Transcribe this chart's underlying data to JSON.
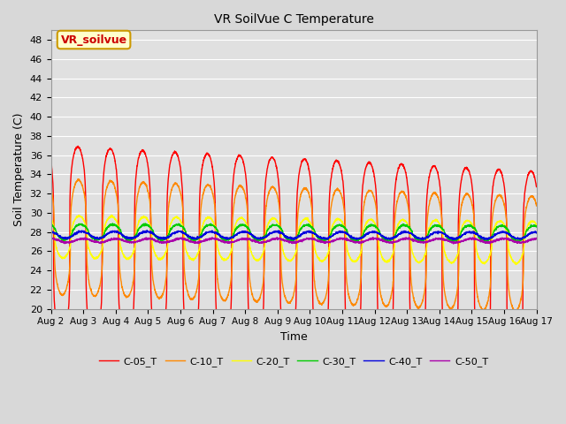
{
  "title": "VR SoilVue C Temperature",
  "xlabel": "Time",
  "ylabel": "Soil Temperature (C)",
  "ylim": [
    20,
    49
  ],
  "yticks": [
    20,
    22,
    24,
    26,
    28,
    30,
    32,
    34,
    36,
    38,
    40,
    42,
    44,
    46,
    48
  ],
  "x_tick_labels": [
    "Aug 2",
    "Aug 3",
    "Aug 4",
    "Aug 5",
    "Aug 6",
    "Aug 7",
    "Aug 8",
    "Aug 9",
    "Aug 10",
    "Aug 11",
    "Aug 12",
    "Aug 13",
    "Aug 14",
    "Aug 15",
    "Aug 16",
    "Aug 17"
  ],
  "annotation_text": "VR_soilvue",
  "annotation_box_color": "#ffffcc",
  "annotation_text_color": "#cc0000",
  "annotation_border_color": "#cc9900",
  "series": {
    "C-05_T": {
      "color": "#ff0000",
      "base": 27.0,
      "amp": 10.0,
      "trend": -0.18,
      "peak_hour": 14.0,
      "trough_hour": 4.0,
      "sharpness": 4.0
    },
    "C-10_T": {
      "color": "#ff8800",
      "base": 27.5,
      "amp": 6.0,
      "trend": -0.12,
      "peak_hour": 14.5,
      "trough_hour": 4.5,
      "sharpness": 3.0
    },
    "C-20_T": {
      "color": "#ffff00",
      "base": 27.5,
      "amp": 2.2,
      "trend": -0.04,
      "peak_hour": 15.0,
      "trough_hour": 5.0,
      "sharpness": 2.0
    },
    "C-30_T": {
      "color": "#00cc00",
      "base": 28.0,
      "amp": 0.8,
      "trend": -0.01,
      "peak_hour": 16.0,
      "trough_hour": 6.0,
      "sharpness": 1.5
    },
    "C-40_T": {
      "color": "#0000dd",
      "base": 27.7,
      "amp": 0.35,
      "trend": -0.005,
      "peak_hour": 17.0,
      "trough_hour": 7.0,
      "sharpness": 1.2
    },
    "C-50_T": {
      "color": "#aa00aa",
      "base": 27.1,
      "amp": 0.2,
      "trend": 0.0,
      "peak_hour": 18.0,
      "trough_hour": 8.0,
      "sharpness": 1.0
    }
  },
  "legend_order": [
    "C-05_T",
    "C-10_T",
    "C-20_T",
    "C-30_T",
    "C-40_T",
    "C-50_T"
  ],
  "bg_color": "#d8d8d8",
  "plot_bg_color": "#e0e0e0",
  "grid_color": "#ffffff",
  "linewidth": 1.0,
  "n_points": 2880,
  "days": 15
}
